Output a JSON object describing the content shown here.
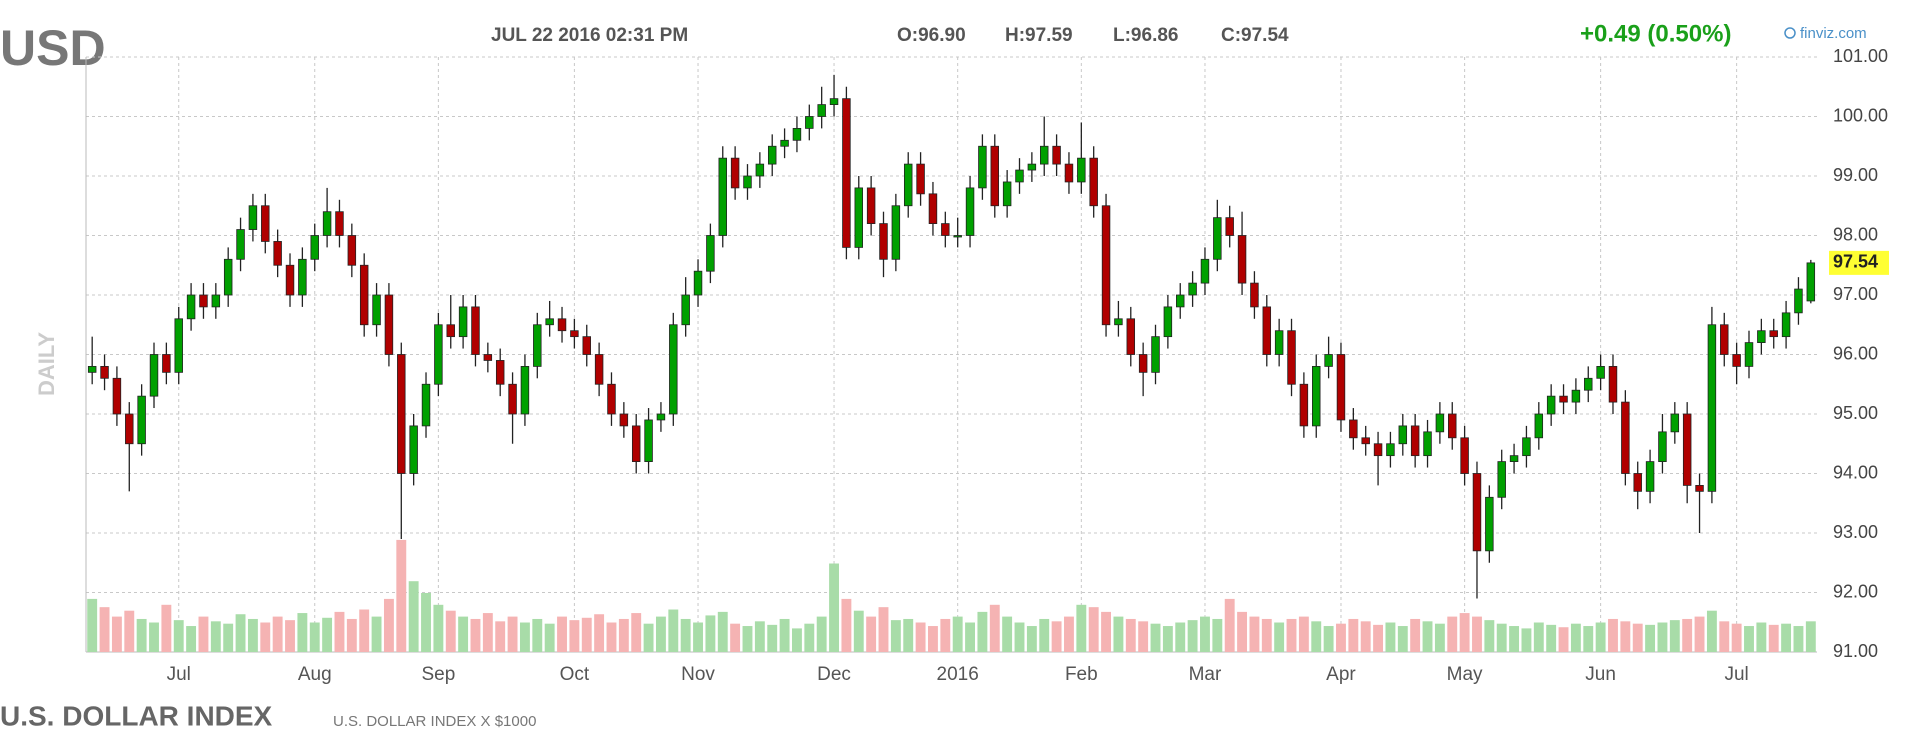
{
  "chart_data": {
    "type": "candlestick",
    "symbol": "USD",
    "timestamp": "JUL 22 2016 02:31 PM",
    "ohlc_text": [
      "O:96.90",
      "H:97.59",
      "L:96.86",
      "C:97.54"
    ],
    "change_text": "+0.49 (0.50%)",
    "source": "finviz.com",
    "period_label": "DAILY",
    "name": "U.S. DOLLAR INDEX",
    "subtitle": "U.S. DOLLAR INDEX X $1000",
    "xlim": [
      -0.5,
      139.5
    ],
    "xticks": [
      {
        "value": 7,
        "label": "Jul"
      },
      {
        "value": 18,
        "label": "Aug"
      },
      {
        "value": 28,
        "label": "Sep"
      },
      {
        "value": 39,
        "label": "Oct"
      },
      {
        "value": 49,
        "label": "Nov"
      },
      {
        "value": 60,
        "label": "Dec"
      },
      {
        "value": 70,
        "label": "2016"
      },
      {
        "value": 80,
        "label": "Feb"
      },
      {
        "value": 90,
        "label": "Mar"
      },
      {
        "value": 101,
        "label": "Apr"
      },
      {
        "value": 111,
        "label": "May"
      },
      {
        "value": 122,
        "label": "Jun"
      },
      {
        "value": 133,
        "label": "Jul"
      }
    ],
    "ylim": [
      91,
      101
    ],
    "yticks": [
      {
        "value": 91,
        "label": "91.00"
      },
      {
        "value": 92,
        "label": "92.00"
      },
      {
        "value": 93,
        "label": "93.00"
      },
      {
        "value": 94,
        "label": "94.00"
      },
      {
        "value": 95,
        "label": "95.00"
      },
      {
        "value": 96,
        "label": "96.00"
      },
      {
        "value": 97,
        "label": "97.00"
      },
      {
        "value": 98,
        "label": "98.00"
      },
      {
        "value": 99,
        "label": "99.00"
      },
      {
        "value": 100,
        "label": "100.00"
      },
      {
        "value": 101,
        "label": "101.00"
      }
    ],
    "grid": true,
    "up_color": "#00a000",
    "down_color": "#b00000",
    "volume_up_color": "#a8dca8",
    "volume_down_color": "#f5b3b3",
    "last_color": "#ffff33",
    "open": [
      95.7,
      95.8,
      95.6,
      95.0,
      94.5,
      95.3,
      96.0,
      95.7,
      96.6,
      97.0,
      96.8,
      97.0,
      97.6,
      98.1,
      98.5,
      97.9,
      97.5,
      97.0,
      97.6,
      98.0,
      98.4,
      98.0,
      97.5,
      96.5,
      97.0,
      96.0,
      94.0,
      94.8,
      95.5,
      96.5,
      96.3,
      96.8,
      96.0,
      95.9,
      95.5,
      95.0,
      95.8,
      96.5,
      96.6,
      96.4,
      96.3,
      96.0,
      95.5,
      95.0,
      94.8,
      94.2,
      94.9,
      95.0,
      96.5,
      97.0,
      97.4,
      98.0,
      99.3,
      98.8,
      99.0,
      99.2,
      99.5,
      99.6,
      99.8,
      100.0,
      100.2,
      100.3,
      97.8,
      98.8,
      98.2,
      97.6,
      98.5,
      99.2,
      98.7,
      98.2,
      98.0,
      98.0,
      98.8,
      99.5,
      98.5,
      98.9,
      99.1,
      99.2,
      99.5,
      99.2,
      98.9,
      99.3,
      98.5,
      96.5,
      96.6,
      96.0,
      95.7,
      96.3,
      96.8,
      97.0,
      97.2,
      97.6,
      98.3,
      98.0,
      97.2,
      96.8,
      96.0,
      96.4,
      95.5,
      94.8,
      95.8,
      96.0,
      94.9,
      94.6,
      94.5,
      94.3,
      94.5,
      94.8,
      94.3,
      94.7,
      95.0,
      94.6,
      94.0,
      92.7,
      93.6,
      94.2,
      94.3,
      94.6,
      95.0,
      95.3,
      95.2,
      95.4,
      95.6,
      95.8,
      95.2,
      94.0,
      93.7,
      94.2,
      94.7,
      95.0,
      93.8,
      93.7,
      96.5,
      96.0,
      95.8,
      96.2,
      96.4,
      96.3,
      96.7,
      96.9
    ],
    "high": [
      96.3,
      96.0,
      95.8,
      95.2,
      95.5,
      96.2,
      96.2,
      96.8,
      97.2,
      97.2,
      97.2,
      97.8,
      98.3,
      98.7,
      98.7,
      98.1,
      97.7,
      97.8,
      98.2,
      98.8,
      98.6,
      98.2,
      97.7,
      97.2,
      97.2,
      96.2,
      95.0,
      95.7,
      96.7,
      97.0,
      97.0,
      97.0,
      96.2,
      96.1,
      95.7,
      96.0,
      96.7,
      96.9,
      96.8,
      96.6,
      96.5,
      96.2,
      95.7,
      95.2,
      95.0,
      95.1,
      95.2,
      96.7,
      97.3,
      97.6,
      98.2,
      99.5,
      99.5,
      99.2,
      99.4,
      99.7,
      99.8,
      100.0,
      100.2,
      100.5,
      100.7,
      100.5,
      99.0,
      99.0,
      98.4,
      98.7,
      99.4,
      99.4,
      98.9,
      98.4,
      98.3,
      99.0,
      99.7,
      99.7,
      99.1,
      99.3,
      99.4,
      100.0,
      99.7,
      99.4,
      99.9,
      99.5,
      98.7,
      96.9,
      96.8,
      96.2,
      96.5,
      97.0,
      97.2,
      97.4,
      97.8,
      98.6,
      98.5,
      98.4,
      97.4,
      97.0,
      96.6,
      96.6,
      95.7,
      96.0,
      96.3,
      96.2,
      95.1,
      94.8,
      94.7,
      94.7,
      95.0,
      95.0,
      94.9,
      95.2,
      95.2,
      94.8,
      94.2,
      93.8,
      94.4,
      94.5,
      94.8,
      95.2,
      95.5,
      95.5,
      95.6,
      95.8,
      96.0,
      96.0,
      95.4,
      94.2,
      94.4,
      95.0,
      95.2,
      95.2,
      94.0,
      96.8,
      96.7,
      96.2,
      96.4,
      96.6,
      96.6,
      96.9,
      97.3,
      97.59
    ],
    "low": [
      95.5,
      95.4,
      94.8,
      93.7,
      94.3,
      95.1,
      95.5,
      95.5,
      96.4,
      96.6,
      96.6,
      96.8,
      97.4,
      97.9,
      97.7,
      97.3,
      96.8,
      96.8,
      97.4,
      97.8,
      97.8,
      97.3,
      96.3,
      96.3,
      95.8,
      92.9,
      93.8,
      94.6,
      95.3,
      96.1,
      96.1,
      95.8,
      95.7,
      95.3,
      94.5,
      94.8,
      95.6,
      96.3,
      96.2,
      96.1,
      95.8,
      95.3,
      94.8,
      94.6,
      94.0,
      94.0,
      94.7,
      94.8,
      96.3,
      96.8,
      97.2,
      97.8,
      98.6,
      98.6,
      98.8,
      99.0,
      99.3,
      99.4,
      99.6,
      99.8,
      100.0,
      97.6,
      97.6,
      98.0,
      97.3,
      97.4,
      98.3,
      98.5,
      98.0,
      97.8,
      97.8,
      97.8,
      98.6,
      98.3,
      98.3,
      98.7,
      98.9,
      99.0,
      99.0,
      98.7,
      98.7,
      98.3,
      96.3,
      96.3,
      95.8,
      95.3,
      95.5,
      96.1,
      96.6,
      96.8,
      97.0,
      97.4,
      97.8,
      97.0,
      96.6,
      95.8,
      95.8,
      95.3,
      94.6,
      94.6,
      95.6,
      94.7,
      94.4,
      94.3,
      93.8,
      94.1,
      94.3,
      94.1,
      94.1,
      94.5,
      94.4,
      93.8,
      91.9,
      92.5,
      93.4,
      94.0,
      94.1,
      94.4,
      94.8,
      95.0,
      95.0,
      95.2,
      95.4,
      95.0,
      93.8,
      93.4,
      93.5,
      94.0,
      94.5,
      93.5,
      93.0,
      93.5,
      95.8,
      95.5,
      95.6,
      96.0,
      96.1,
      96.1,
      96.5,
      96.86
    ],
    "close": [
      95.8,
      95.6,
      95.0,
      94.5,
      95.3,
      96.0,
      95.7,
      96.6,
      97.0,
      96.8,
      97.0,
      97.6,
      98.1,
      98.5,
      97.9,
      97.5,
      97.0,
      97.6,
      98.0,
      98.4,
      98.0,
      97.5,
      96.5,
      97.0,
      96.0,
      94.0,
      94.8,
      95.5,
      96.5,
      96.3,
      96.8,
      96.0,
      95.9,
      95.5,
      95.0,
      95.8,
      96.5,
      96.6,
      96.4,
      96.3,
      96.0,
      95.5,
      95.0,
      94.8,
      94.2,
      94.9,
      95.0,
      96.5,
      97.0,
      97.4,
      98.0,
      99.3,
      98.8,
      99.0,
      99.2,
      99.5,
      99.6,
      99.8,
      100.0,
      100.2,
      100.3,
      97.8,
      98.8,
      98.2,
      97.6,
      98.5,
      99.2,
      98.7,
      98.2,
      98.0,
      98.0,
      98.8,
      99.5,
      98.5,
      98.9,
      99.1,
      99.2,
      99.5,
      99.2,
      98.9,
      99.3,
      98.5,
      96.5,
      96.6,
      96.0,
      95.7,
      96.3,
      96.8,
      97.0,
      97.2,
      97.6,
      98.3,
      98.0,
      97.2,
      96.8,
      96.0,
      96.4,
      95.5,
      94.8,
      95.8,
      96.0,
      94.9,
      94.6,
      94.5,
      94.3,
      94.5,
      94.8,
      94.3,
      94.7,
      95.0,
      94.6,
      94.0,
      92.7,
      93.6,
      94.2,
      94.3,
      94.6,
      95.0,
      95.3,
      95.2,
      95.4,
      95.6,
      95.8,
      95.2,
      94.0,
      93.7,
      94.2,
      94.7,
      95.0,
      93.8,
      93.7,
      96.5,
      96.0,
      95.8,
      96.2,
      96.4,
      96.3,
      96.7,
      97.1,
      97.54
    ],
    "vlim": [
      0,
      100
    ],
    "volume": [
      45,
      38,
      30,
      35,
      28,
      25,
      40,
      27,
      22,
      30,
      26,
      24,
      32,
      28,
      25,
      30,
      27,
      33,
      25,
      29,
      34,
      28,
      36,
      30,
      45,
      95,
      60,
      50,
      40,
      35,
      30,
      28,
      33,
      26,
      30,
      25,
      28,
      24,
      30,
      27,
      29,
      32,
      25,
      28,
      33,
      24,
      30,
      36,
      28,
      25,
      31,
      34,
      24,
      22,
      26,
      23,
      28,
      20,
      24,
      30,
      75,
      45,
      35,
      30,
      38,
      27,
      28,
      25,
      22,
      28,
      30,
      25,
      34,
      40,
      30,
      25,
      22,
      28,
      26,
      30,
      40,
      38,
      34,
      30,
      28,
      26,
      24,
      22,
      25,
      27,
      30,
      28,
      45,
      34,
      30,
      28,
      25,
      28,
      30,
      26,
      22,
      24,
      28,
      26,
      23,
      25,
      22,
      28,
      26,
      24,
      30,
      33,
      30,
      27,
      24,
      22,
      20,
      25,
      23,
      21,
      24,
      22,
      25,
      28,
      26,
      24,
      23,
      25,
      27,
      28,
      30,
      35,
      26,
      24,
      22,
      25,
      23,
      24,
      22,
      26
    ]
  }
}
